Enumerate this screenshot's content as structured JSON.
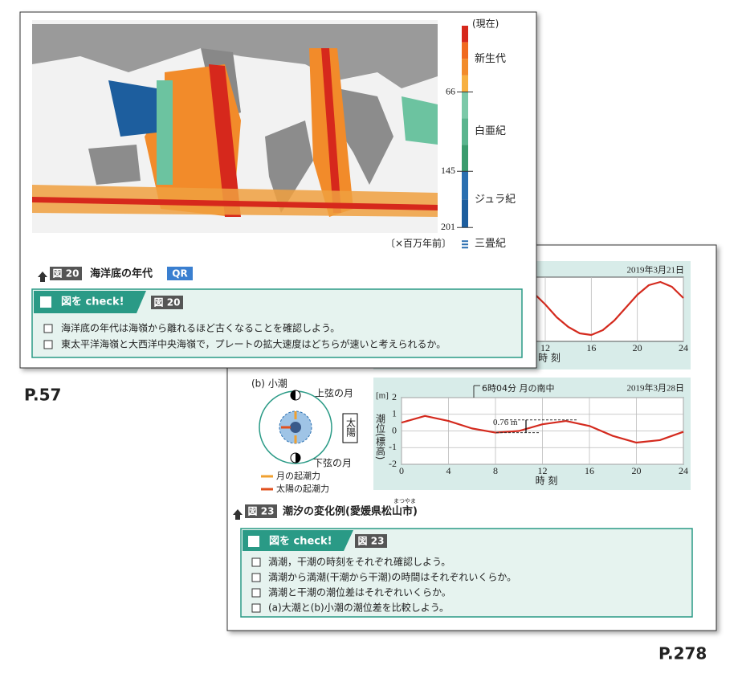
{
  "page57": {
    "label": "P.57",
    "legend": {
      "top": "(現在)",
      "ticks": [
        66,
        145,
        201
      ],
      "eras": [
        "新生代",
        "白亜紀",
        "ジュラ紀",
        "三畳紀"
      ],
      "unit": "〔×百万年前〕"
    },
    "caption": {
      "figure": "図 20",
      "title": "海洋底の年代",
      "qr": "QR"
    },
    "check": {
      "heading": "図を check!",
      "figure": "図 20",
      "items": [
        "海洋底の年代は海嶺から離れるほど古くなることを確認しよう。",
        "東太平洋海嶺と大西洋中央海嶺で，プレートの拡大速度はどちらが速いと考えられるか。"
      ]
    }
  },
  "page278": {
    "label": "P.278",
    "chart_a": {
      "type": "line",
      "date": "2019年3月21日",
      "x": [
        11,
        12,
        13,
        14,
        15,
        16,
        17,
        18,
        19,
        20,
        21,
        22,
        23,
        24
      ],
      "values": [
        1.0,
        0.3,
        -0.5,
        -1.1,
        -1.5,
        -1.6,
        -1.3,
        -0.7,
        0.1,
        0.9,
        1.5,
        1.7,
        1.4,
        0.7
      ],
      "xlim": [
        0,
        24
      ],
      "ylim": [
        -2,
        2
      ],
      "xticks": [
        12,
        16,
        20,
        24
      ],
      "xlabel": "時 刻",
      "color": "#d42a1e"
    },
    "diagram_b": {
      "heading": "(b) 小潮",
      "first_quarter": "上弦の月",
      "third_quarter": "下弦の月",
      "sun": "太陽",
      "moon_force": "月の起潮力",
      "sun_force": "太陽の起潮力"
    },
    "chart_b": {
      "type": "line",
      "unit": "[m]",
      "ylabel": "潮位(標高)",
      "xlabel": "時 刻",
      "annotation": "6時04分 月の南中",
      "date": "2019年3月28日",
      "x": [
        0,
        2,
        4,
        6,
        8,
        10,
        12,
        14,
        16,
        18,
        20,
        22,
        24
      ],
      "values": [
        0.5,
        0.9,
        0.6,
        0.15,
        -0.1,
        0.0,
        0.4,
        0.6,
        0.3,
        -0.3,
        -0.7,
        -0.55,
        -0.05
      ],
      "xlim": [
        0,
        24
      ],
      "ylim": [
        -2,
        2
      ],
      "xticks": [
        0,
        4,
        8,
        12,
        16,
        20,
        24
      ],
      "yticks": [
        2,
        1,
        0,
        -1,
        -2
      ],
      "range": {
        "value": 0.76,
        "label": "0.76 m"
      },
      "color": "#d42a1e"
    },
    "caption": {
      "figure": "図 23",
      "title": "潮汐の変化例(愛媛県松山市)",
      "ruby": "まつやま"
    },
    "check": {
      "heading": "図を check!",
      "figure": "図 23",
      "items": [
        "満潮，干潮の時刻をそれぞれ確認しよう。",
        "満潮から満潮(干潮から干潮)の時間はそれぞれいくらか。",
        "満潮と干潮の潮位差はそれぞれいくらか。",
        "(a)大潮と(b)小潮の潮位差を比較しよう。"
      ]
    }
  }
}
